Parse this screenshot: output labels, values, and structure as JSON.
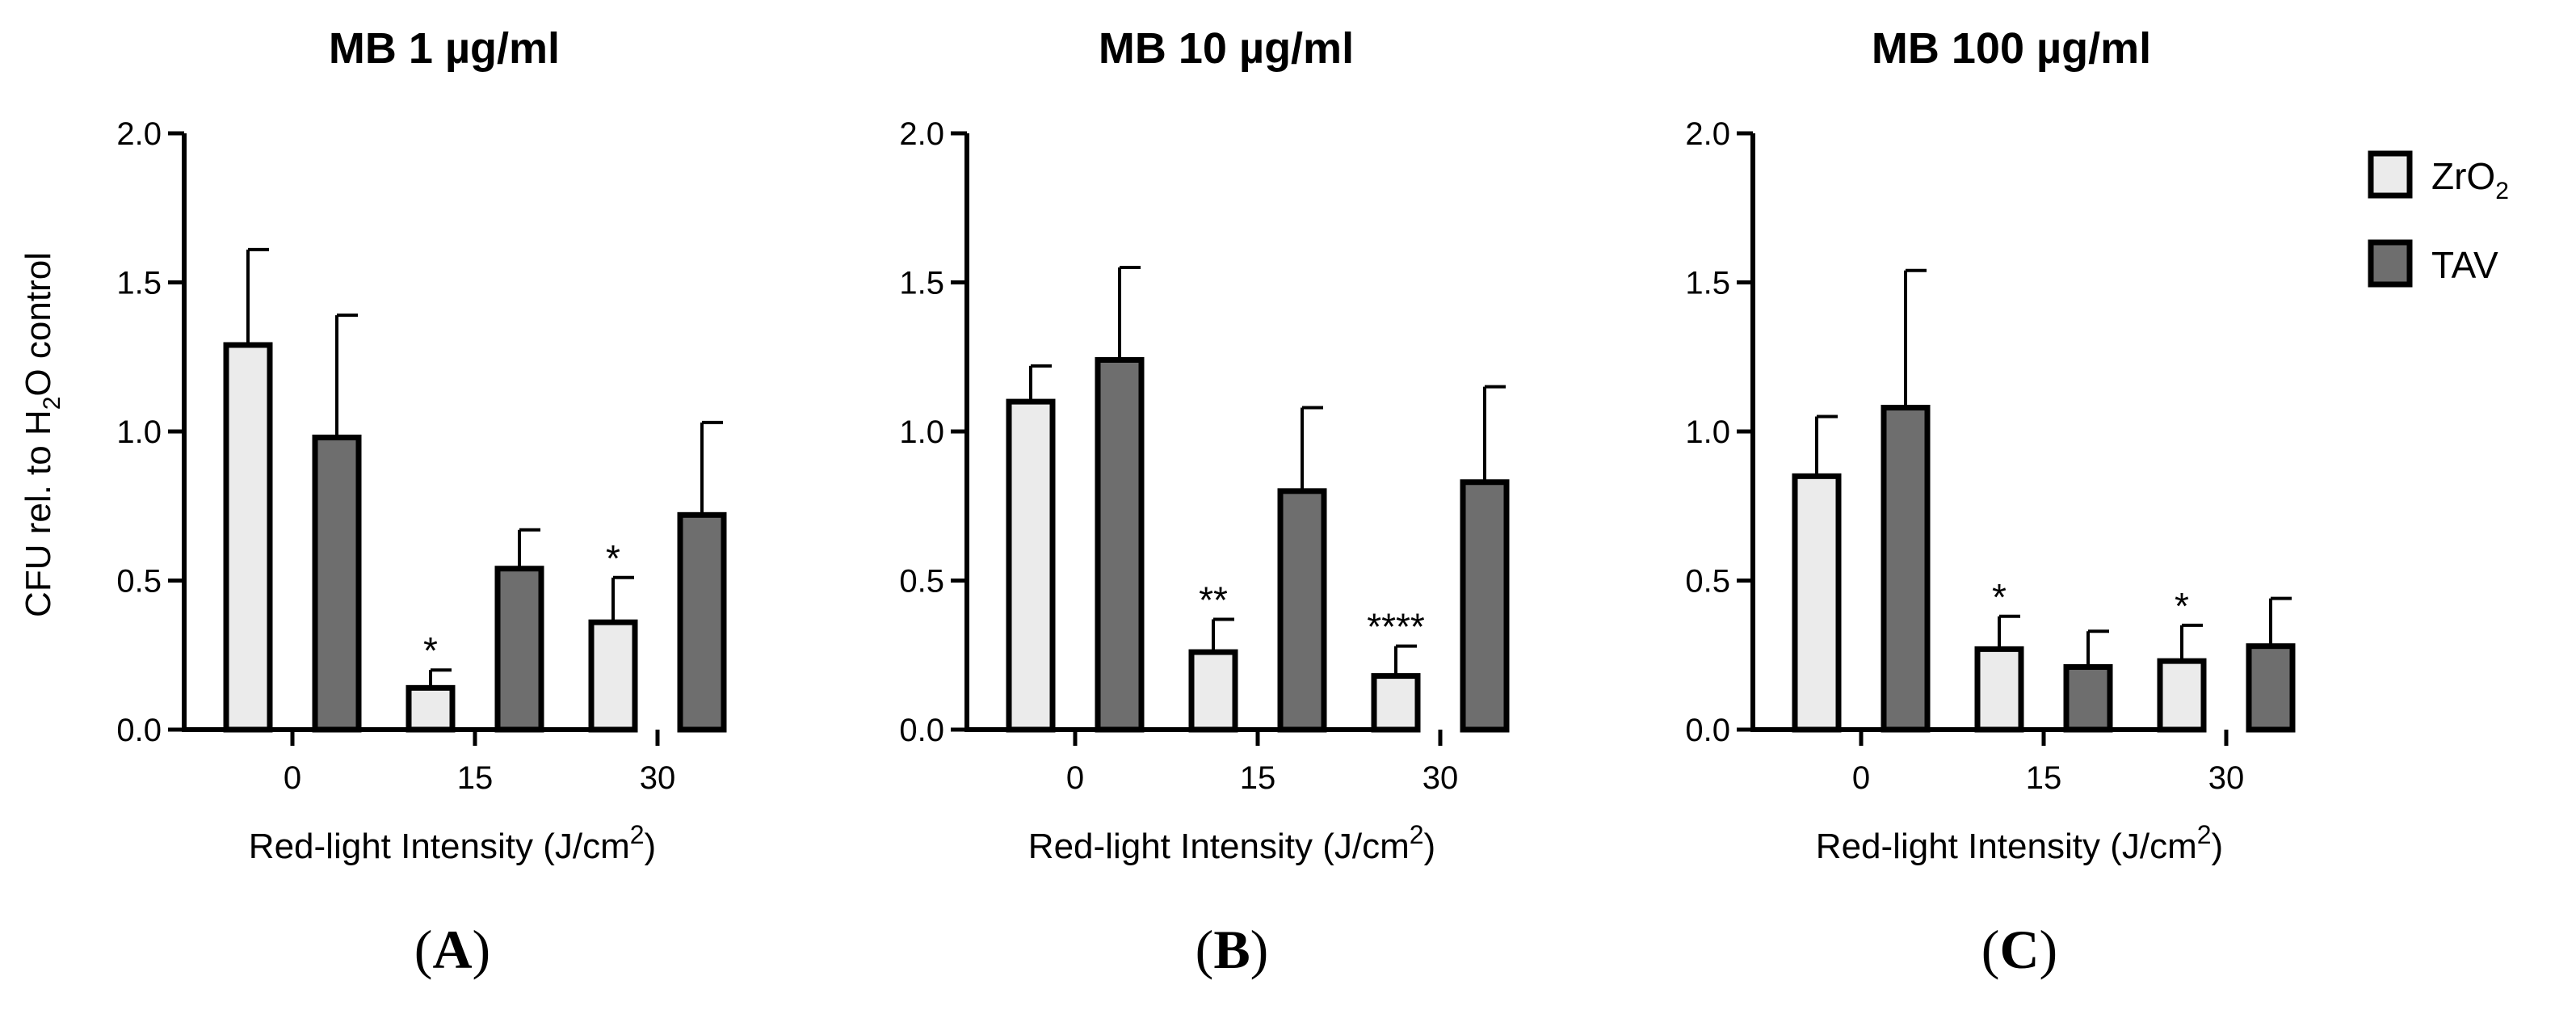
{
  "ylabel": {
    "prefix": "CFU rel. to H",
    "sub": "2",
    "suffix": "O control"
  },
  "legend": [
    {
      "label": "ZrO",
      "sub": "2",
      "color": "#ebebeb"
    },
    {
      "label": "TAV",
      "sub": "",
      "color": "#6e6e6e"
    }
  ],
  "chart_data": [
    {
      "type": "bar",
      "panel": "A",
      "title": "MB 1 µg/ml",
      "xlabel": {
        "prefix": "Red-light Intensity (J/cm",
        "sup": "2",
        "suffix": ")"
      },
      "ylabel": "CFU rel. to H2O control",
      "ylim": [
        0,
        2.0
      ],
      "yticks": [
        "0.0",
        "0.5",
        "1.0",
        "1.5",
        "2.0"
      ],
      "categories": [
        "0",
        "15",
        "30"
      ],
      "series": [
        {
          "name": "ZrO2",
          "values": [
            1.29,
            0.14,
            0.36
          ],
          "errors": [
            0.32,
            0.06,
            0.15
          ],
          "sig": [
            "",
            "*",
            "*"
          ]
        },
        {
          "name": "TAV",
          "values": [
            0.98,
            0.54,
            0.72
          ],
          "errors": [
            0.41,
            0.13,
            0.31
          ],
          "sig": [
            "",
            "",
            ""
          ]
        }
      ]
    },
    {
      "type": "bar",
      "panel": "B",
      "title": "MB 10 µg/ml",
      "xlabel": {
        "prefix": "Red-light Intensity (J/cm",
        "sup": "2",
        "suffix": ")"
      },
      "ylabel": "CFU rel. to H2O control",
      "ylim": [
        0,
        2.0
      ],
      "yticks": [
        "0.0",
        "0.5",
        "1.0",
        "1.5",
        "2.0"
      ],
      "categories": [
        "0",
        "15",
        "30"
      ],
      "series": [
        {
          "name": "ZrO2",
          "values": [
            1.1,
            0.26,
            0.18
          ],
          "errors": [
            0.12,
            0.11,
            0.1
          ],
          "sig": [
            "",
            "**",
            "****"
          ]
        },
        {
          "name": "TAV",
          "values": [
            1.24,
            0.8,
            0.83
          ],
          "errors": [
            0.31,
            0.28,
            0.32
          ],
          "sig": [
            "",
            "",
            ""
          ]
        }
      ]
    },
    {
      "type": "bar",
      "panel": "C",
      "title": "MB 100 µg/ml",
      "xlabel": {
        "prefix": "Red-light Intensity (J/cm",
        "sup": "2",
        "suffix": ")"
      },
      "ylabel": "CFU rel. to H2O control",
      "ylim": [
        0,
        2.0
      ],
      "yticks": [
        "0.0",
        "0.5",
        "1.0",
        "1.5",
        "2.0"
      ],
      "categories": [
        "0",
        "15",
        "30"
      ],
      "series": [
        {
          "name": "ZrO2",
          "values": [
            0.85,
            0.27,
            0.23
          ],
          "errors": [
            0.2,
            0.11,
            0.12
          ],
          "sig": [
            "",
            "*",
            "*"
          ]
        },
        {
          "name": "TAV",
          "values": [
            1.08,
            0.21,
            0.28
          ],
          "errors": [
            0.46,
            0.12,
            0.16
          ],
          "sig": [
            "",
            "",
            ""
          ]
        }
      ]
    }
  ]
}
